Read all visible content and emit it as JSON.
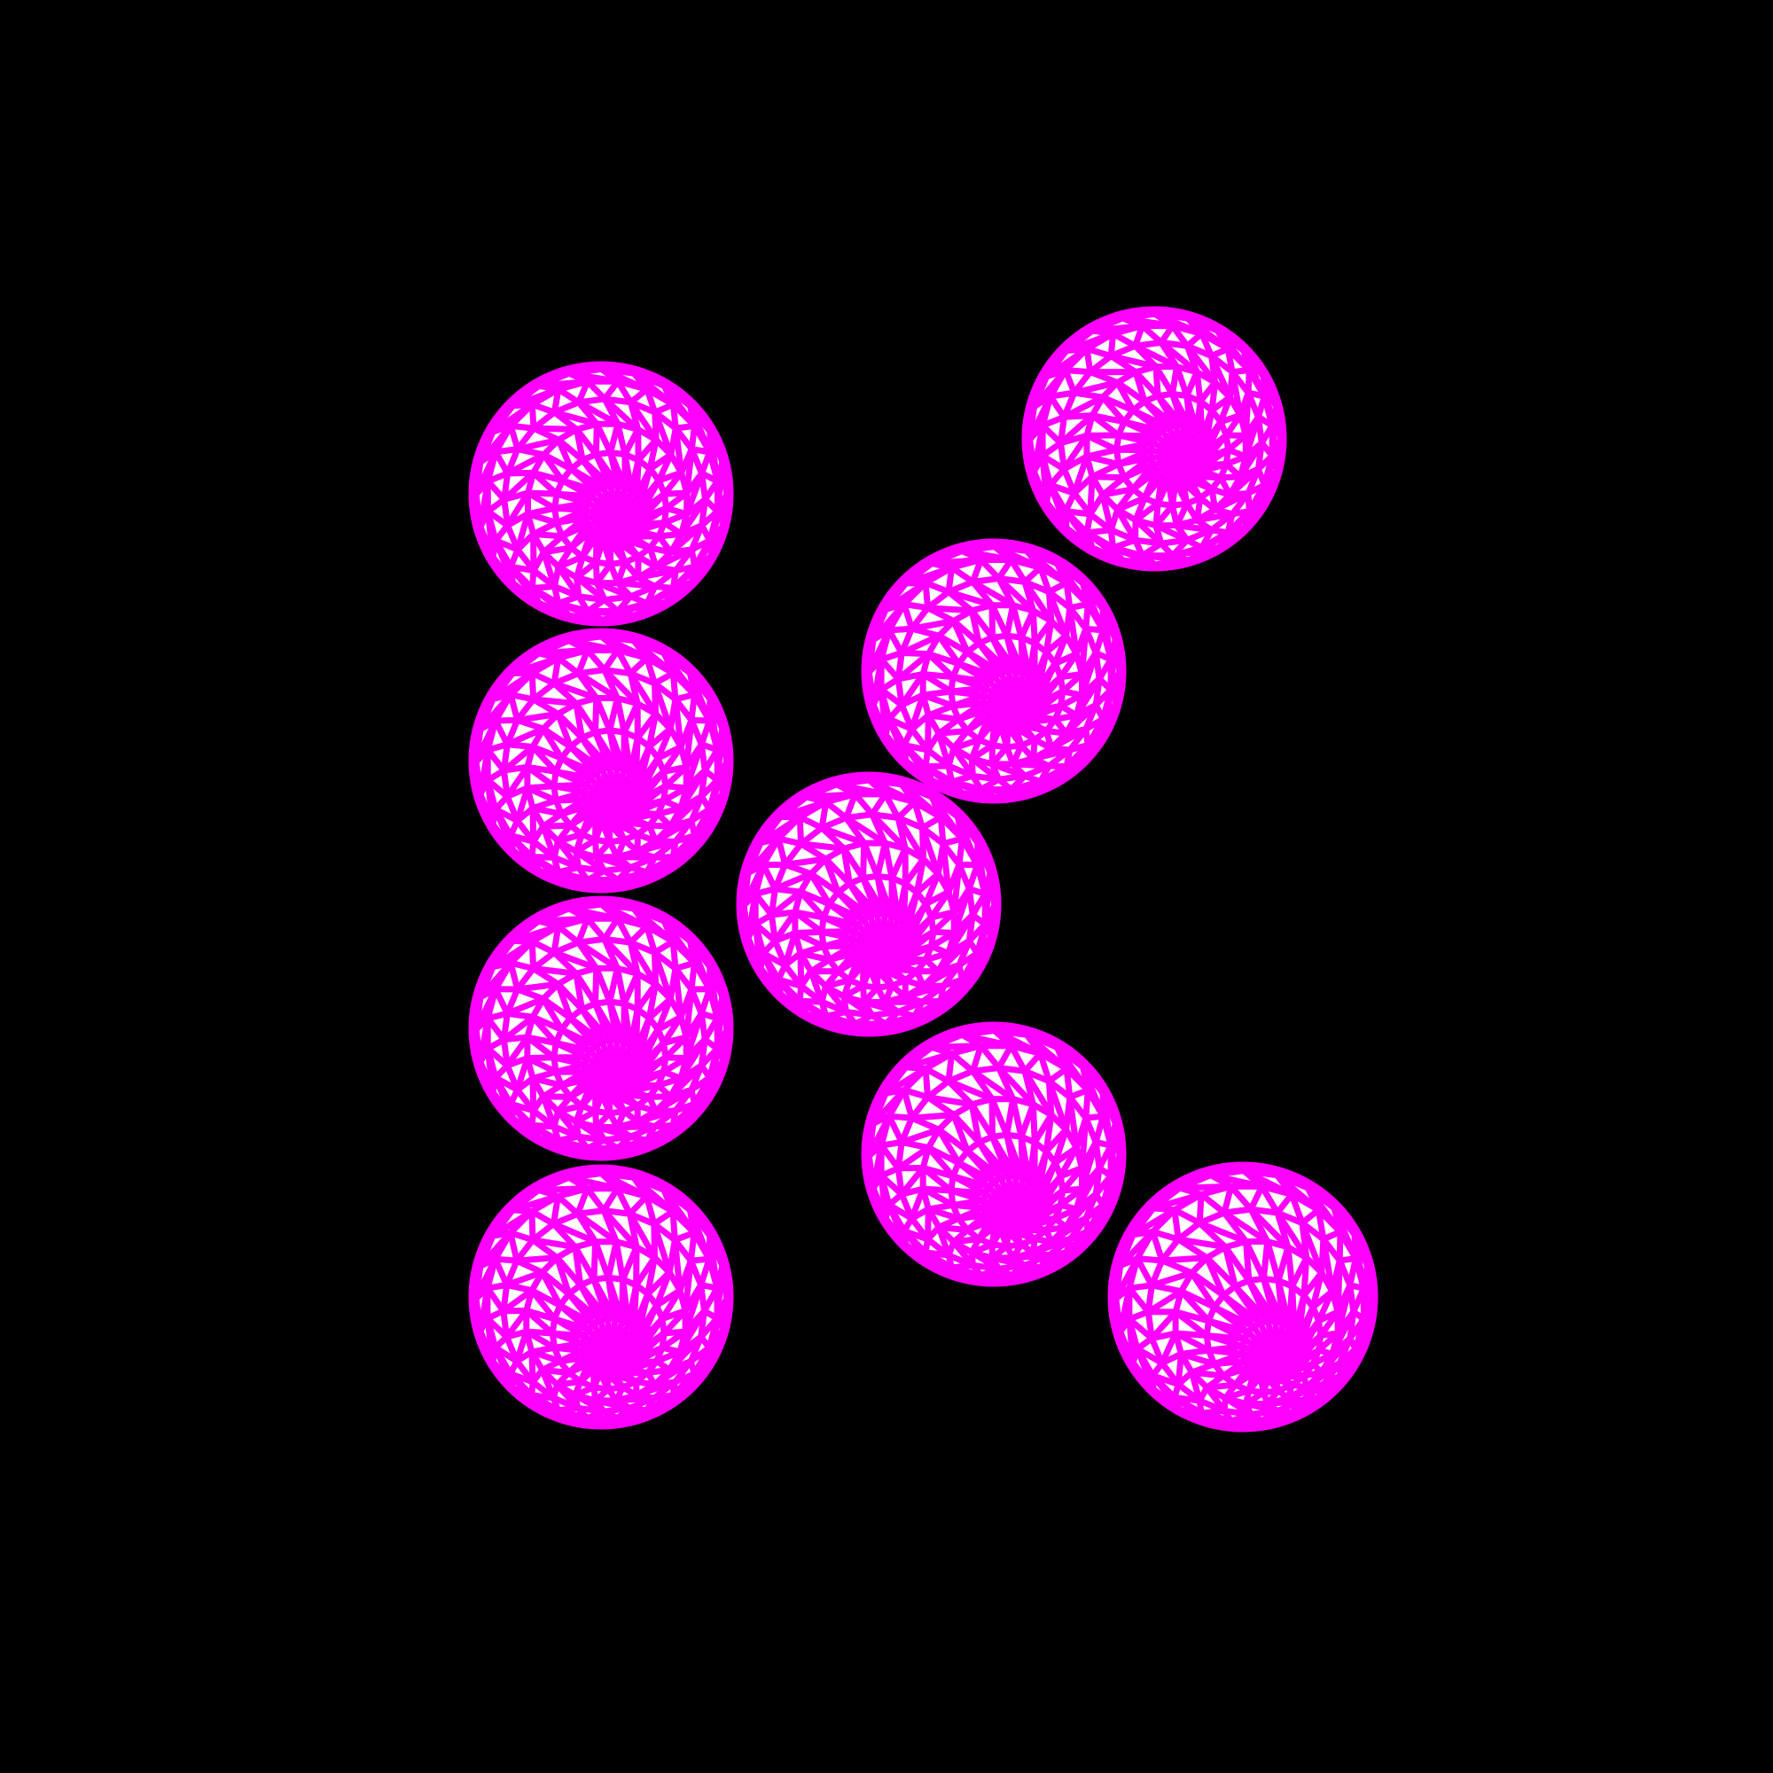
{
  "artwork": {
    "background_color": "#000000",
    "sphere_fill_color": "#ffffff",
    "sphere_line_color": "#ff00ff",
    "sphere_count": 9,
    "sphere_style": "wireframe-sphere"
  }
}
